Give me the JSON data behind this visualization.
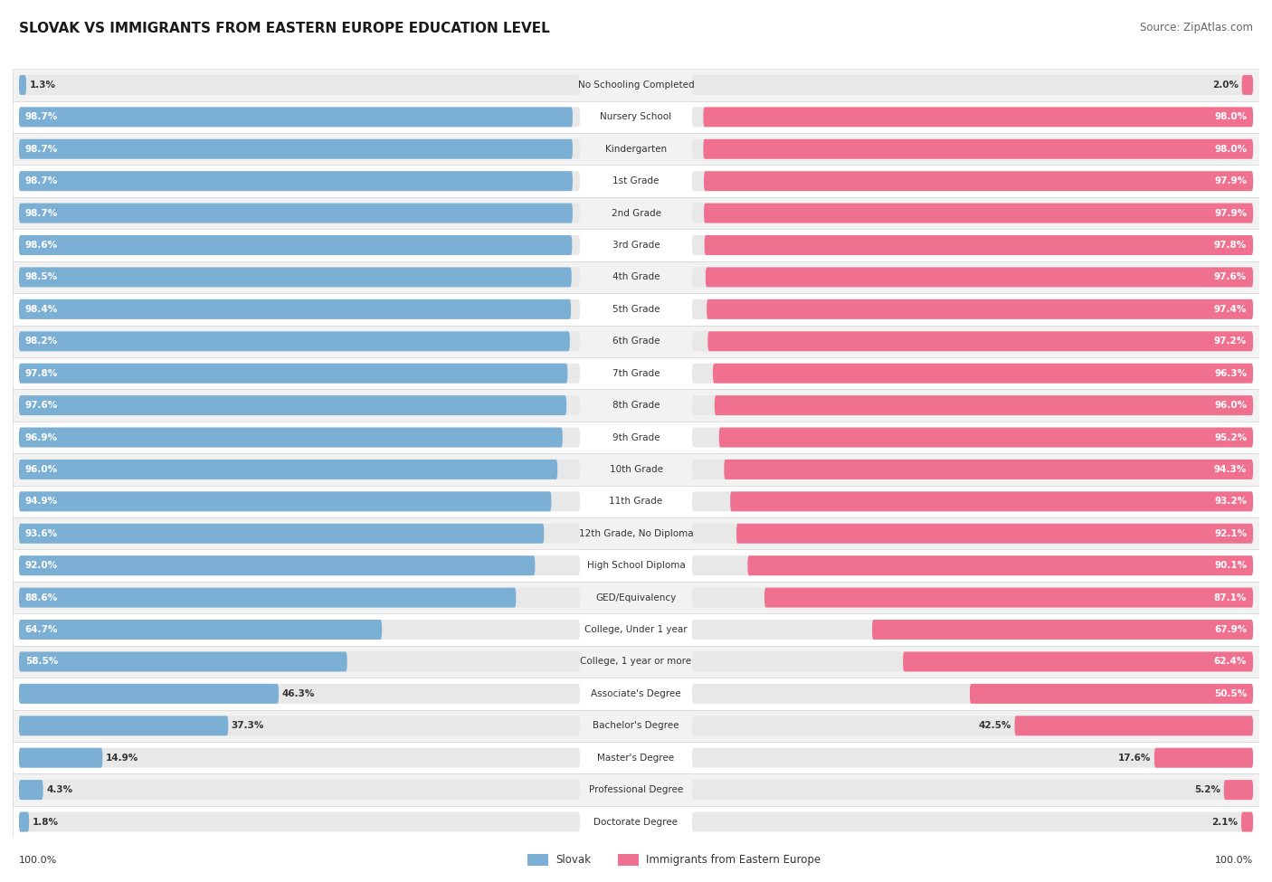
{
  "title": "SLOVAK VS IMMIGRANTS FROM EASTERN EUROPE EDUCATION LEVEL",
  "source": "Source: ZipAtlas.com",
  "categories": [
    "No Schooling Completed",
    "Nursery School",
    "Kindergarten",
    "1st Grade",
    "2nd Grade",
    "3rd Grade",
    "4th Grade",
    "5th Grade",
    "6th Grade",
    "7th Grade",
    "8th Grade",
    "9th Grade",
    "10th Grade",
    "11th Grade",
    "12th Grade, No Diploma",
    "High School Diploma",
    "GED/Equivalency",
    "College, Under 1 year",
    "College, 1 year or more",
    "Associate's Degree",
    "Bachelor's Degree",
    "Master's Degree",
    "Professional Degree",
    "Doctorate Degree"
  ],
  "slovak_values": [
    1.3,
    98.7,
    98.7,
    98.7,
    98.7,
    98.6,
    98.5,
    98.4,
    98.2,
    97.8,
    97.6,
    96.9,
    96.0,
    94.9,
    93.6,
    92.0,
    88.6,
    64.7,
    58.5,
    46.3,
    37.3,
    14.9,
    4.3,
    1.8
  ],
  "immigrant_values": [
    2.0,
    98.0,
    98.0,
    97.9,
    97.9,
    97.8,
    97.6,
    97.4,
    97.2,
    96.3,
    96.0,
    95.2,
    94.3,
    93.2,
    92.1,
    90.1,
    87.1,
    67.9,
    62.4,
    50.5,
    42.5,
    17.6,
    5.2,
    2.1
  ],
  "slovak_color": "#7bafd4",
  "immigrant_color": "#f07090",
  "bar_bg_color": "#e8e8e8",
  "row_bg_even": "#f2f2f2",
  "row_bg_odd": "#ffffff",
  "title_fontsize": 11,
  "source_fontsize": 8.5,
  "label_fontsize": 7.5,
  "value_fontsize": 7.5,
  "legend_fontsize": 8.5,
  "footer_fontsize": 8
}
